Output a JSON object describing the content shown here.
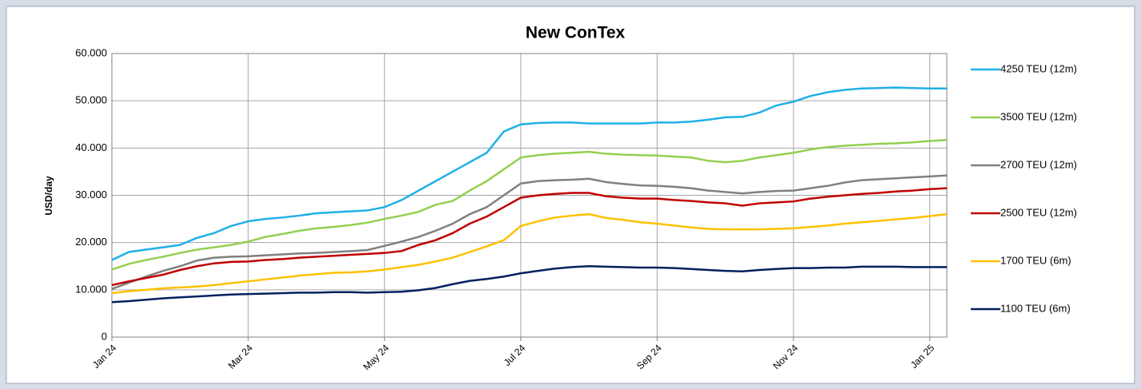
{
  "chart_data": {
    "type": "line",
    "title": "New ConTex",
    "y_label": "USD/day",
    "categories": [
      "Jan 24",
      null,
      null,
      null,
      null,
      null,
      null,
      null,
      "Mar 24",
      null,
      null,
      null,
      null,
      null,
      null,
      null,
      "May 24",
      null,
      null,
      null,
      null,
      null,
      null,
      null,
      "Jul 24",
      null,
      null,
      null,
      null,
      null,
      null,
      null,
      "Sep 24",
      null,
      null,
      null,
      null,
      null,
      null,
      null,
      "Nov 24",
      null,
      null,
      null,
      null,
      null,
      null,
      null,
      "Jan 25",
      null
    ],
    "ylim": [
      0,
      60000
    ],
    "yticks": [
      {
        "value": 0,
        "label": "0"
      },
      {
        "value": 10000,
        "label": "10.000"
      },
      {
        "value": 20000,
        "label": "20.000"
      },
      {
        "value": 30000,
        "label": "30.000"
      },
      {
        "value": 40000,
        "label": "40.000"
      },
      {
        "value": 50000,
        "label": "50.000"
      },
      {
        "value": 60000,
        "label": "60.000"
      }
    ],
    "grid": true,
    "legend": "right",
    "series": [
      {
        "name": "4250 TEU (12m)",
        "color": "#1fb0e6",
        "values": [
          16300,
          18000,
          18500,
          19000,
          19500,
          21000,
          22000,
          23500,
          24500,
          25000,
          25300,
          25700,
          26200,
          26400,
          26600,
          26800,
          27500,
          29000,
          31000,
          33000,
          35000,
          37000,
          39000,
          43500,
          45000,
          45300,
          45400,
          45400,
          45200,
          45200,
          45200,
          45200,
          45400,
          45400,
          45600,
          46000,
          46500,
          46600,
          47500,
          49000,
          49800,
          51000,
          51800,
          52300,
          52600,
          52700,
          52800,
          52700,
          52600,
          52600
        ]
      },
      {
        "name": "3500 TEU (12m)",
        "color": "#92d050",
        "values": [
          14300,
          15500,
          16300,
          17000,
          17800,
          18500,
          19000,
          19500,
          20200,
          21200,
          21800,
          22500,
          23000,
          23300,
          23700,
          24200,
          25000,
          25700,
          26500,
          28000,
          28800,
          31000,
          33000,
          35500,
          38000,
          38500,
          38800,
          39000,
          39200,
          38800,
          38600,
          38500,
          38400,
          38200,
          38000,
          37300,
          37000,
          37300,
          38000,
          38500,
          39000,
          39700,
          40200,
          40500,
          40700,
          40900,
          41000,
          41200,
          41500,
          41700
        ]
      },
      {
        "name": "2700 TEU (12m)",
        "color": "#808080",
        "values": [
          10200,
          11500,
          12800,
          14000,
          15000,
          16200,
          16800,
          17000,
          17100,
          17300,
          17500,
          17700,
          17800,
          18000,
          18200,
          18400,
          19300,
          20200,
          21200,
          22500,
          24000,
          26000,
          27500,
          30000,
          32500,
          33000,
          33200,
          33300,
          33500,
          32800,
          32400,
          32100,
          32000,
          31800,
          31500,
          31000,
          30700,
          30400,
          30700,
          30900,
          31000,
          31500,
          32000,
          32700,
          33200,
          33400,
          33600,
          33800,
          34000,
          34200
        ]
      },
      {
        "name": "2500 TEU (12m)",
        "color": "#c00000",
        "values": [
          11000,
          11800,
          12500,
          13200,
          14200,
          15000,
          15600,
          15900,
          16000,
          16300,
          16500,
          16800,
          17000,
          17200,
          17400,
          17600,
          17800,
          18200,
          19500,
          20500,
          22000,
          24000,
          25500,
          27500,
          29500,
          30000,
          30300,
          30500,
          30500,
          29800,
          29500,
          29300,
          29300,
          29000,
          28800,
          28500,
          28300,
          27800,
          28300,
          28500,
          28700,
          29300,
          29700,
          30000,
          30300,
          30500,
          30800,
          31000,
          31300,
          31500
        ]
      },
      {
        "name": "1700 TEU (6m)",
        "color": "#ffc000",
        "values": [
          9300,
          9700,
          10000,
          10300,
          10500,
          10700,
          11000,
          11400,
          11800,
          12200,
          12600,
          13000,
          13300,
          13600,
          13700,
          13900,
          14300,
          14800,
          15300,
          16000,
          16800,
          18000,
          19200,
          20500,
          23500,
          24500,
          25300,
          25700,
          26000,
          25200,
          24800,
          24300,
          24000,
          23600,
          23200,
          22900,
          22800,
          22800,
          22800,
          22900,
          23000,
          23300,
          23600,
          24000,
          24300,
          24600,
          24900,
          25200,
          25600,
          26000
        ]
      },
      {
        "name": "1100 TEU (6m)",
        "color": "#002060",
        "values": [
          7400,
          7600,
          7900,
          8200,
          8400,
          8600,
          8800,
          9000,
          9100,
          9200,
          9300,
          9400,
          9400,
          9500,
          9500,
          9400,
          9500,
          9600,
          9900,
          10400,
          11200,
          11900,
          12300,
          12800,
          13500,
          14000,
          14500,
          14800,
          15000,
          14900,
          14800,
          14700,
          14700,
          14600,
          14400,
          14200,
          14000,
          13900,
          14200,
          14400,
          14600,
          14600,
          14700,
          14700,
          14900,
          14900,
          14900,
          14800,
          14800,
          14800
        ]
      }
    ]
  }
}
